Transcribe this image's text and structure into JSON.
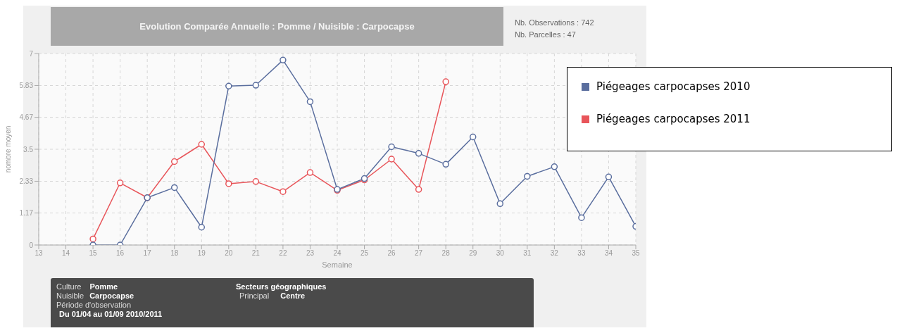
{
  "chart_data": {
    "type": "line",
    "title": "Evolution Comparée Annuelle : Pomme / Nuisible : Carpocapse",
    "xlabel": "Semaine",
    "ylabel": "nombre moyen",
    "x": [
      15,
      16,
      17,
      18,
      19,
      20,
      21,
      22,
      23,
      24,
      25,
      26,
      27,
      28,
      29,
      30,
      31,
      32,
      33,
      34,
      35
    ],
    "series": [
      {
        "name": "Piégeages carpocapses 2010",
        "color": "#5a6e9e",
        "values": [
          0,
          0,
          1.73,
          2.1,
          0.65,
          5.81,
          5.84,
          6.76,
          5.24,
          2.03,
          2.43,
          3.59,
          3.35,
          2.95,
          3.95,
          1.51,
          2.51,
          2.86,
          1.0,
          2.49,
          0.68
        ]
      },
      {
        "name": "Piégeages carpocapses 2011",
        "color": "#e8555a",
        "values": [
          0.22,
          2.27,
          1.73,
          3.05,
          3.68,
          2.24,
          2.32,
          1.95,
          2.65,
          2.0,
          2.38,
          3.14,
          2.03,
          5.97,
          null,
          null,
          null,
          null,
          null,
          null,
          null
        ]
      }
    ],
    "xlim": [
      13,
      35
    ],
    "xticks": [
      13,
      14,
      15,
      16,
      17,
      18,
      19,
      20,
      21,
      22,
      23,
      24,
      25,
      26,
      27,
      28,
      29,
      30,
      31,
      32,
      33,
      34,
      35
    ],
    "ylim": [
      0,
      7
    ],
    "yticks": [
      0,
      1.17,
      2.33,
      3.5,
      4.67,
      5.83,
      7
    ],
    "grid": true,
    "legend": "right",
    "marker": "circle",
    "line_style": "solid",
    "annotations": [
      "Nb. Observations : 742",
      "Nb. Parcelles : 47",
      "Culture",
      "Pomme",
      "Nuisible",
      "Carpocapse",
      "Période d'observation",
      "Du 01/04 au 01/09 2010/2011",
      "Secteurs géographiques",
      "Principal",
      "Centre"
    ]
  }
}
